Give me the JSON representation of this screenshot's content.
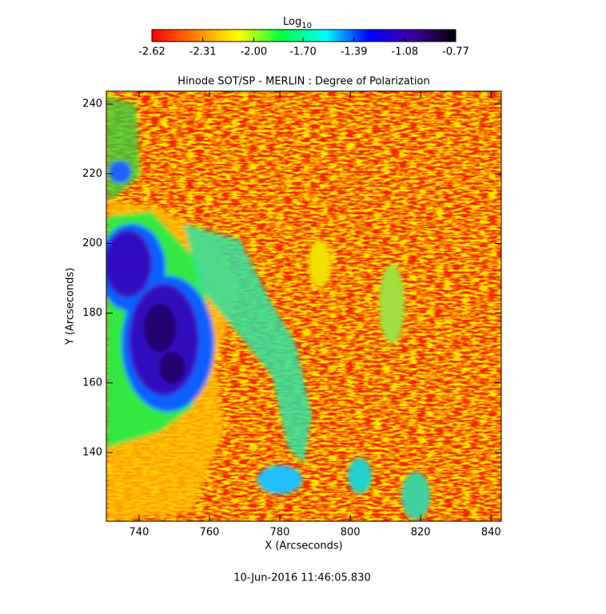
{
  "chart_data": {
    "type": "image",
    "title": "Hinode SOT/SP - MERLIN : Degree of Polarization",
    "x_label": "X (Arcseconds)",
    "y_label": "Y (Arcseconds)",
    "footer": "10-Jun-2016 11:46:05.830",
    "xlim": [
      730.7,
      842.9
    ],
    "ylim": [
      120.3,
      243.7
    ],
    "xticks": [
      740,
      760,
      780,
      800,
      820,
      840
    ],
    "yticks": [
      140,
      160,
      180,
      200,
      220,
      240
    ],
    "colorbar": {
      "label": "Log",
      "label_sub": "10",
      "zlim": [
        -2.62,
        -0.77
      ],
      "ticks": [
        -2.62,
        -2.31,
        {
          "value": -2.0,
          "label": "-2.00"
        },
        {
          "value": -1.7,
          "label": "-1.70"
        },
        -1.39,
        -1.08,
        -0.77
      ],
      "colors": [
        "#ff0000",
        "#ff8000",
        "#ffff00",
        "#00ff40",
        "#00ffff",
        "#0000ff",
        "#4000a0",
        "#000000"
      ]
    }
  }
}
